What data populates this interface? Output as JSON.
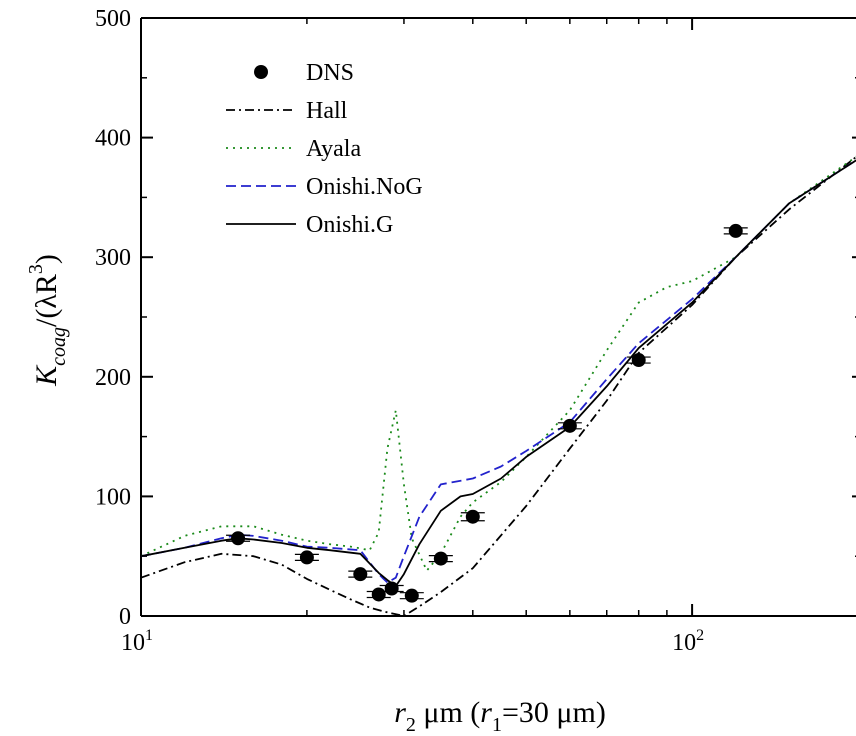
{
  "chart_data": {
    "type": "line",
    "xscale": "log",
    "xlim": [
      10,
      200
    ],
    "ylim": [
      0,
      500
    ],
    "grid": false,
    "legend_position": "top-left",
    "x_ticks": [
      {
        "value": 10,
        "base": "10",
        "exp": "1"
      },
      {
        "value": 100,
        "base": "10",
        "exp": "2"
      }
    ],
    "y_ticks": [
      0,
      100,
      200,
      300,
      400,
      500
    ],
    "xlabel": {
      "r": "r",
      "sub1": "2",
      "unit": " μm (",
      "r2": "r",
      "sub2": "1",
      "tail": "=30 μm)"
    },
    "ylabel": {
      "K": "K",
      "sub": "coag",
      "mid": "/(λR",
      "sup": "3",
      "tail": ")"
    },
    "series": [
      {
        "name": "DNS",
        "style": "markers",
        "color": "#000000",
        "x": [
          15,
          20,
          25,
          27,
          28.5,
          31,
          35,
          40,
          60,
          80,
          120
        ],
        "y": [
          65,
          49,
          35,
          18,
          23,
          17,
          48,
          83,
          159,
          214,
          322
        ],
        "err": [
          3,
          3,
          3,
          3,
          3,
          3,
          3,
          4,
          3,
          3,
          3
        ]
      },
      {
        "name": "Hall",
        "style": "dashdot",
        "color": "#000000",
        "x": [
          10,
          12,
          14,
          16,
          18,
          20,
          22,
          24,
          26,
          28,
          30,
          32,
          35,
          40,
          50,
          60,
          70,
          80,
          100,
          120,
          150,
          200
        ],
        "y": [
          32,
          45,
          52,
          50,
          43,
          31,
          22,
          14,
          7,
          3,
          0,
          8,
          20,
          40,
          92,
          140,
          180,
          220,
          260,
          300,
          340,
          385
        ]
      },
      {
        "name": "Ayala",
        "style": "dotted",
        "color": "#1a8a1a",
        "x": [
          10,
          12,
          14,
          16,
          18,
          20,
          22,
          24,
          26,
          27,
          28,
          29,
          30,
          31,
          33,
          35,
          38,
          40,
          45,
          50,
          60,
          70,
          80,
          90,
          100,
          120,
          150,
          200
        ],
        "y": [
          50,
          67,
          75,
          75,
          68,
          63,
          60,
          58,
          55,
          70,
          140,
          172,
          110,
          65,
          38,
          52,
          83,
          95,
          112,
          133,
          172,
          222,
          262,
          275,
          280,
          300,
          345,
          385
        ]
      },
      {
        "name": "Onishi.NoG",
        "style": "dashed",
        "color": "#2222cc",
        "x": [
          10,
          12,
          14,
          15,
          16,
          18,
          20,
          22,
          25,
          27,
          28,
          29,
          30,
          32,
          35,
          40,
          45,
          50,
          60,
          70,
          80,
          100,
          120,
          150,
          200
        ],
        "y": [
          50,
          57,
          65,
          68,
          67,
          63,
          58,
          57,
          55,
          35,
          28,
          32,
          50,
          83,
          110,
          115,
          125,
          138,
          162,
          198,
          228,
          265,
          300,
          345,
          382
        ]
      },
      {
        "name": "Onishi.G",
        "style": "solid",
        "color": "#000000",
        "x": [
          10,
          12,
          14,
          15,
          16,
          18,
          20,
          22,
          25,
          27,
          28,
          29,
          30,
          32,
          35,
          38,
          40,
          45,
          50,
          60,
          70,
          80,
          100,
          120,
          150,
          200
        ],
        "y": [
          50,
          57,
          63,
          65,
          64,
          61,
          57,
          55,
          52,
          36,
          30,
          25,
          35,
          60,
          88,
          100,
          102,
          115,
          133,
          158,
          192,
          224,
          262,
          300,
          345,
          382
        ]
      }
    ]
  }
}
